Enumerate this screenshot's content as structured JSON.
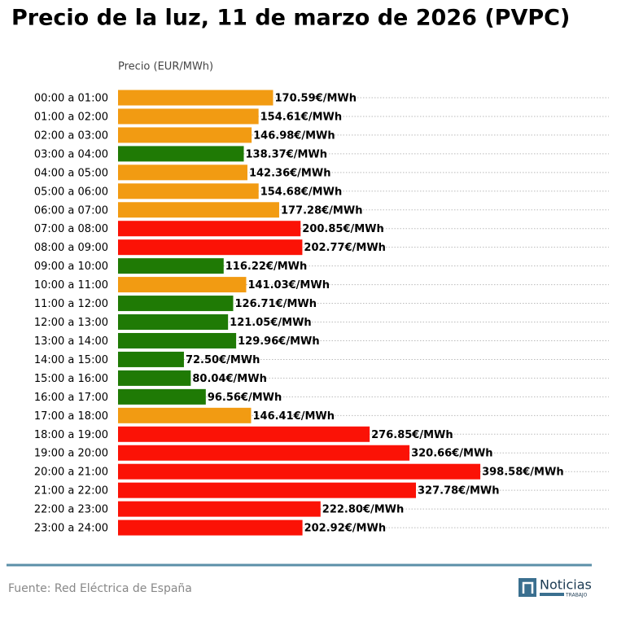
{
  "chart_data": {
    "type": "hbar",
    "title": "Precio de la luz, 11 de marzo de 2026 (PVPC)",
    "x_label": "Precio (EUR/MWh)",
    "categories": [
      "00:00 a 01:00",
      "01:00 a 02:00",
      "02:00 a 03:00",
      "03:00 a 04:00",
      "04:00 a 05:00",
      "05:00 a 06:00",
      "06:00 a 07:00",
      "07:00 a 08:00",
      "08:00 a 09:00",
      "09:00 a 10:00",
      "10:00 a 11:00",
      "11:00 a 12:00",
      "12:00 a 13:00",
      "13:00 a 14:00",
      "14:00 a 15:00",
      "15:00 a 16:00",
      "16:00 a 17:00",
      "17:00 a 18:00",
      "18:00 a 19:00",
      "19:00 a 20:00",
      "20:00 a 21:00",
      "21:00 a 22:00",
      "22:00 a 23:00",
      "23:00 a 24:00"
    ],
    "values": [
      170.59,
      154.61,
      146.98,
      138.37,
      142.36,
      154.68,
      177.28,
      200.85,
      202.77,
      116.22,
      141.03,
      126.71,
      121.05,
      129.96,
      72.5,
      80.04,
      96.56,
      146.41,
      276.85,
      320.66,
      398.58,
      327.78,
      222.8,
      202.92
    ],
    "value_labels": [
      "170.59€/MWh",
      "154.61€/MWh",
      "146.98€/MWh",
      "138.37€/MWh",
      "142.36€/MWh",
      "154.68€/MWh",
      "177.28€/MWh",
      "200.85€/MWh",
      "202.77€/MWh",
      "116.22€/MWh",
      "141.03€/MWh",
      "126.71€/MWh",
      "121.05€/MWh",
      "129.96€/MWh",
      "72.50€/MWh",
      "80.04€/MWh",
      "96.56€/MWh",
      "146.41€/MWh",
      "276.85€/MWh",
      "320.66€/MWh",
      "398.58€/MWh",
      "327.78€/MWh",
      "222.80€/MWh",
      "202.92€/MWh"
    ],
    "colors": [
      "#f29b12",
      "#f29b12",
      "#f29b12",
      "#1f7a05",
      "#f29b12",
      "#f29b12",
      "#f29b12",
      "#fb1206",
      "#fb1206",
      "#1f7a05",
      "#f29b12",
      "#1f7a05",
      "#1f7a05",
      "#1f7a05",
      "#1f7a05",
      "#1f7a05",
      "#1f7a05",
      "#f29b12",
      "#fb1206",
      "#fb1206",
      "#fb1206",
      "#fb1206",
      "#fb1206",
      "#fb1206"
    ],
    "xlim": [
      0,
      540
    ]
  },
  "footer": {
    "source": "Fuente: Red Eléctrica de España",
    "logo_main": "Noticias",
    "logo_sub": "TRABAJO"
  }
}
